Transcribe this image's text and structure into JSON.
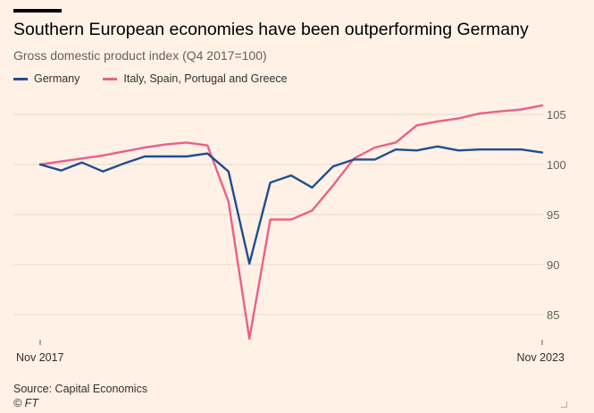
{
  "header": {
    "title": "Southern European economies have been outperforming Germany",
    "subtitle": "Gross domestic product index (Q4 2017=100)"
  },
  "footer": {
    "source": "Source: Capital Economics",
    "credit": "© FT"
  },
  "chart_data": {
    "type": "line",
    "title": "Southern European economies have been outperforming Germany",
    "subtitle": "Gross domestic product index (Q4 2017=100)",
    "x": [
      "2017-Q4",
      "2018-Q1",
      "2018-Q2",
      "2018-Q3",
      "2018-Q4",
      "2019-Q1",
      "2019-Q2",
      "2019-Q3",
      "2019-Q4",
      "2020-Q1",
      "2020-Q2",
      "2020-Q3",
      "2020-Q4",
      "2021-Q1",
      "2021-Q2",
      "2021-Q3",
      "2021-Q4",
      "2022-Q1",
      "2022-Q2",
      "2022-Q3",
      "2022-Q4",
      "2023-Q1",
      "2023-Q2",
      "2023-Q3",
      "2023-Q4"
    ],
    "x_tick_labels": [
      {
        "index": 0,
        "label": "Nov 2017"
      },
      {
        "index": 24,
        "label": "Nov 2023"
      }
    ],
    "series": [
      {
        "name": "Germany",
        "color": "#1F4E8F",
        "values": [
          100.0,
          99.4,
          100.2,
          99.3,
          100.1,
          100.8,
          100.8,
          100.8,
          101.1,
          99.3,
          90.1,
          98.2,
          98.9,
          97.7,
          99.8,
          100.5,
          100.5,
          101.5,
          101.4,
          101.8,
          101.4,
          101.5,
          101.5,
          101.5,
          101.2
        ]
      },
      {
        "name": "Italy, Spain, Portugal and Greece",
        "color": "#E8608A",
        "values": [
          100.0,
          100.3,
          100.6,
          100.9,
          101.3,
          101.7,
          102.0,
          102.2,
          101.9,
          96.3,
          82.6,
          94.5,
          94.5,
          95.4,
          97.9,
          100.6,
          101.7,
          102.2,
          103.9,
          104.3,
          104.6,
          105.1,
          105.3,
          105.5,
          105.9
        ]
      }
    ],
    "ylim": [
      82.5,
      107.5
    ],
    "yticks": [
      85,
      90,
      95,
      100,
      105
    ],
    "grid": true,
    "legend_position": "top-left"
  }
}
